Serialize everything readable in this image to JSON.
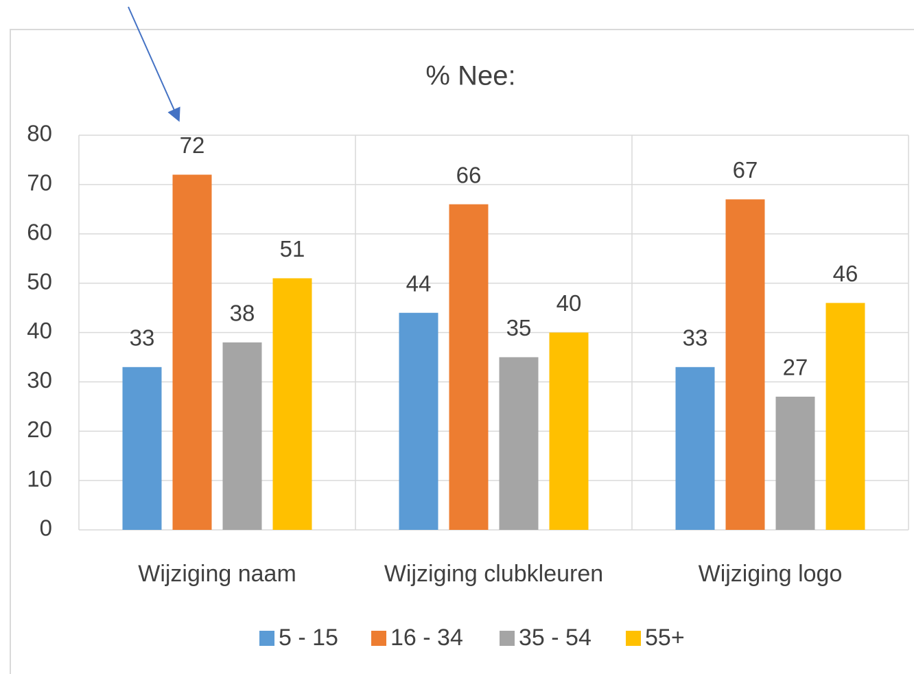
{
  "chart_data": {
    "type": "bar",
    "title": "% Nee:",
    "categories": [
      "Wijziging naam",
      "Wijziging clubkleuren",
      "Wijziging logo"
    ],
    "series": [
      {
        "name": "5 - 15",
        "color": "#5b9bd5",
        "values": [
          33,
          44,
          33
        ]
      },
      {
        "name": "16 - 34",
        "color": "#ed7d31",
        "values": [
          72,
          66,
          67
        ]
      },
      {
        "name": "35 - 54",
        "color": "#a5a5a5",
        "values": [
          38,
          35,
          27
        ]
      },
      {
        "name": "55+",
        "color": "#ffc000",
        "values": [
          51,
          40,
          46
        ]
      }
    ],
    "ylim": [
      0,
      80
    ],
    "yticks": [
      0,
      10,
      20,
      30,
      40,
      50,
      60,
      70,
      80
    ],
    "grid": true,
    "legend": "bottom"
  }
}
